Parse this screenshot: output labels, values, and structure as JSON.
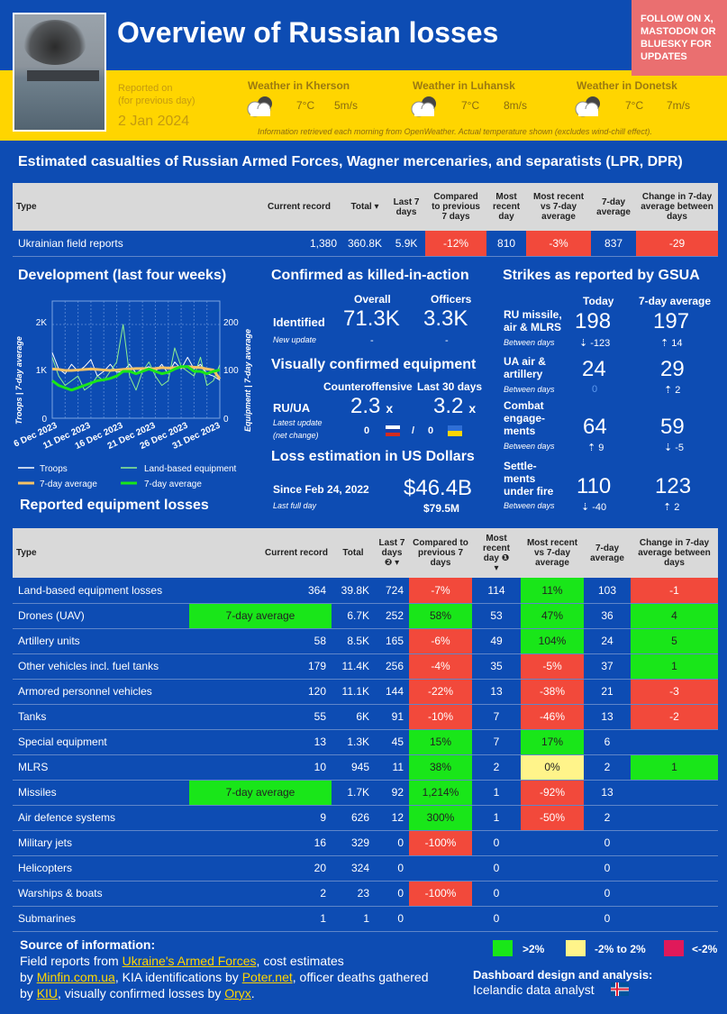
{
  "header": {
    "title": "Overview of Russian losses",
    "follow": "FOLLOW ON X, MASTODON OR BLUESKY FOR UPDATES",
    "reported_label1": "Reported on",
    "reported_label2": "(for previous day)",
    "reported_date": "2 Jan 2024",
    "weather": [
      {
        "title": "Weather in Kherson",
        "temp": "7°C",
        "wind": "5m/s"
      },
      {
        "title": "Weather in Luhansk",
        "temp": "7°C",
        "wind": "8m/s"
      },
      {
        "title": "Weather in Donetsk",
        "temp": "7°C",
        "wind": "7m/s"
      }
    ],
    "weather_note": "Information retrieved each morning from OpenWeather. Actual temperature shown (excludes wind-chill effect)."
  },
  "casualties": {
    "title": "Estimated casualties of Russian Armed Forces, Wagner mercenaries, and separatists (LPR, DPR)",
    "headers": [
      "Type",
      "Current record",
      "Total",
      "Last 7 days",
      "Compared to previous 7 days",
      "Most recent day",
      "Most recent vs 7-day average",
      "7-day average",
      "Change in 7-day average between days"
    ],
    "sort_marker": "▾",
    "row": {
      "type": "Ukrainian field reports",
      "record": "1,380",
      "total": "360.8K",
      "last7": "5.9K",
      "cmp": "-12%",
      "recent": "810",
      "vs": "-3%",
      "avg": "837",
      "chg": "-29"
    }
  },
  "development": {
    "title": "Development (last four weeks)",
    "y_left": "Troops | 7-day average",
    "y_right": "Equipment | 7-day average",
    "y_left_ticks": [
      "2K",
      "1K",
      "0"
    ],
    "y_right_ticks": [
      "200",
      "100",
      "0"
    ],
    "x_ticks": [
      "6 Dec 2023",
      "11 Dec 2023",
      "16 Dec 2023",
      "21 Dec 2023",
      "26 Dec 2023",
      "31 Dec 2023"
    ],
    "legend": [
      "Troops",
      "Land-based equipment",
      "7-day average",
      "7-day average"
    ]
  },
  "chart_data": {
    "type": "line",
    "x": [
      "2023-12-06",
      "2023-12-07",
      "2023-12-08",
      "2023-12-09",
      "2023-12-10",
      "2023-12-11",
      "2023-12-12",
      "2023-12-13",
      "2023-12-14",
      "2023-12-15",
      "2023-12-16",
      "2023-12-17",
      "2023-12-18",
      "2023-12-19",
      "2023-12-20",
      "2023-12-21",
      "2023-12-22",
      "2023-12-23",
      "2023-12-24",
      "2023-12-25",
      "2023-12-26",
      "2023-12-27",
      "2023-12-28",
      "2023-12-29",
      "2023-12-30",
      "2023-12-31",
      "2024-01-01"
    ],
    "series": [
      {
        "name": "Troops",
        "axis": "left",
        "values": [
          1400,
          1050,
          950,
          1150,
          1000,
          1100,
          1250,
          900,
          1000,
          1150,
          980,
          1000,
          1150,
          960,
          1050,
          1100,
          1000,
          1150,
          950,
          1200,
          1050,
          1300,
          1050,
          1150,
          950,
          900,
          810
        ]
      },
      {
        "name": "Land-based equipment",
        "axis": "right",
        "values": [
          130,
          90,
          70,
          80,
          90,
          60,
          70,
          90,
          80,
          100,
          120,
          200,
          90,
          60,
          100,
          120,
          90,
          70,
          80,
          150,
          110,
          100,
          90,
          130,
          70,
          80,
          114
        ]
      },
      {
        "name": "7-day average",
        "axis": "left",
        "values": [
          1050,
          1040,
          1020,
          1020,
          1030,
          1040,
          1050,
          1040,
          1030,
          1020,
          1030,
          1040,
          1050,
          1060,
          1060,
          1050,
          1060,
          1080,
          1070,
          1080,
          1090,
          1100,
          1090,
          1080,
          1050,
          1030,
          837
        ]
      },
      {
        "name": "7-day average",
        "axis": "right",
        "values": [
          80,
          70,
          65,
          60,
          65,
          70,
          75,
          80,
          82,
          85,
          90,
          100,
          100,
          95,
          100,
          105,
          100,
          95,
          98,
          105,
          110,
          110,
          100,
          100,
          95,
          100,
          103
        ]
      }
    ],
    "ylim_left": [
      0,
      2500
    ],
    "ylim_right": [
      0,
      250
    ],
    "colors": [
      "#ffffff",
      "#8ff08f",
      "#f5c266",
      "#19e619"
    ]
  },
  "kia": {
    "title": "Confirmed as killed-in-action",
    "col1": "Overall",
    "col2": "Officers",
    "label": "Identified",
    "sub": "New update",
    "overall": "71.3K",
    "officers": "3.3K",
    "dash1": "-",
    "dash2": "-"
  },
  "equipment_vis": {
    "title": "Visually confirmed equipment",
    "col1": "Counteroffensive",
    "col2": "Last 30 days",
    "label": "RU/UA",
    "sub1": "Latest update",
    "sub2": "(net change)",
    "v1": "2.3",
    "v2": "3.2",
    "x": "x",
    "ru": "0",
    "slash": "/",
    "ua": "0"
  },
  "loss_usd": {
    "title": "Loss estimation in US Dollars",
    "label": "Since Feb 24, 2022",
    "sub": "Last full day",
    "value": "$46.4B",
    "delta": "$79.5M"
  },
  "strikes": {
    "title": "Strikes as reported by GSUA",
    "col1": "Today",
    "col2": "7-day average",
    "between": "Between days",
    "rows": [
      {
        "label": "RU missile, air & MLRS",
        "today": "198",
        "td": "⇣ -123",
        "avg": "197",
        "ad": "⇡ 14"
      },
      {
        "label": "UA air & artillery",
        "today": "24",
        "td": "0",
        "avg": "29",
        "ad": "⇡ 2"
      },
      {
        "label": "Combat engage-ments",
        "today": "64",
        "td": "⇡ 9",
        "avg": "59",
        "ad": "⇣ -5"
      },
      {
        "label": "Settle-ments under fire",
        "today": "110",
        "td": "⇣ -40",
        "avg": "123",
        "ad": "⇡ 2"
      }
    ]
  },
  "equipment": {
    "title": "Reported equipment losses",
    "headers": [
      "Type",
      "Current record",
      "Total",
      "Last 7 days",
      "Compared to previous 7 days",
      "Most recent day",
      "Most recent vs 7-day average",
      "7-day average",
      "Change in 7-day average between days"
    ],
    "note2": "❷",
    "note1": "❶",
    "sort_marker": "▾",
    "rows": [
      {
        "type": "Land-based equipment losses",
        "record": "364",
        "rc": "",
        "total": "39.8K",
        "last7": "724",
        "cmp": "-7%",
        "cc": "red",
        "recent": "114",
        "vs": "11%",
        "vc": "grn",
        "avg": "103",
        "chg": "-1",
        "gc": "red"
      },
      {
        "type": "Drones (UAV)",
        "record": "7-day average",
        "rc": "grn",
        "total": "6.7K",
        "last7": "252",
        "cmp": "58%",
        "cc": "grn",
        "recent": "53",
        "vs": "47%",
        "vc": "grn",
        "avg": "36",
        "chg": "4",
        "gc": "grn"
      },
      {
        "type": "Artillery units",
        "record": "58",
        "rc": "",
        "total": "8.5K",
        "last7": "165",
        "cmp": "-6%",
        "cc": "red",
        "recent": "49",
        "vs": "104%",
        "vc": "grn",
        "avg": "24",
        "chg": "5",
        "gc": "grn"
      },
      {
        "type": "Other vehicles incl. fuel tanks",
        "record": "179",
        "rc": "",
        "total": "11.4K",
        "last7": "256",
        "cmp": "-4%",
        "cc": "red",
        "recent": "35",
        "vs": "-5%",
        "vc": "red",
        "avg": "37",
        "chg": "1",
        "gc": "grn"
      },
      {
        "type": "Armored personnel vehicles",
        "record": "120",
        "rc": "",
        "total": "11.1K",
        "last7": "144",
        "cmp": "-22%",
        "cc": "red",
        "recent": "13",
        "vs": "-38%",
        "vc": "red",
        "avg": "21",
        "chg": "-3",
        "gc": "red"
      },
      {
        "type": "Tanks",
        "record": "55",
        "rc": "",
        "total": "6K",
        "last7": "91",
        "cmp": "-10%",
        "cc": "red",
        "recent": "7",
        "vs": "-46%",
        "vc": "red",
        "avg": "13",
        "chg": "-2",
        "gc": "red"
      },
      {
        "type": "Special equipment",
        "record": "13",
        "rc": "",
        "total": "1.3K",
        "last7": "45",
        "cmp": "15%",
        "cc": "grn",
        "recent": "7",
        "vs": "17%",
        "vc": "grn",
        "avg": "6",
        "chg": "",
        "gc": ""
      },
      {
        "type": "MLRS",
        "record": "10",
        "rc": "",
        "total": "945",
        "last7": "11",
        "cmp": "38%",
        "cc": "grn",
        "recent": "2",
        "vs": "0%",
        "vc": "yel",
        "avg": "2",
        "chg": "1",
        "gc": "grn"
      },
      {
        "type": "Missiles",
        "record": "7-day average",
        "rc": "grn",
        "total": "1.7K",
        "last7": "92",
        "cmp": "1,214%",
        "cc": "grn",
        "recent": "1",
        "vs": "-92%",
        "vc": "red",
        "avg": "13",
        "chg": "",
        "gc": ""
      },
      {
        "type": "Air defence systems",
        "record": "9",
        "rc": "",
        "total": "626",
        "last7": "12",
        "cmp": "300%",
        "cc": "grn",
        "recent": "1",
        "vs": "-50%",
        "vc": "red",
        "avg": "2",
        "chg": "",
        "gc": ""
      },
      {
        "type": "Military jets",
        "record": "16",
        "rc": "",
        "total": "329",
        "last7": "0",
        "cmp": "-100%",
        "cc": "red",
        "recent": "0",
        "vs": "",
        "vc": "",
        "avg": "0",
        "chg": "",
        "gc": ""
      },
      {
        "type": "Helicopters",
        "record": "20",
        "rc": "",
        "total": "324",
        "last7": "0",
        "cmp": "",
        "cc": "",
        "recent": "0",
        "vs": "",
        "vc": "",
        "avg": "0",
        "chg": "",
        "gc": ""
      },
      {
        "type": "Warships & boats",
        "record": "2",
        "rc": "",
        "total": "23",
        "last7": "0",
        "cmp": "-100%",
        "cc": "red",
        "recent": "0",
        "vs": "",
        "vc": "",
        "avg": "0",
        "chg": "",
        "gc": ""
      },
      {
        "type": "Submarines",
        "record": "1",
        "rc": "",
        "total": "1",
        "last7": "0",
        "cmp": "",
        "cc": "",
        "recent": "0",
        "vs": "",
        "vc": "",
        "avg": "0",
        "chg": "",
        "gc": ""
      }
    ]
  },
  "footer": {
    "src_title": "Source of information:",
    "l1a": "Field reports from ",
    "l1b": "Ukraine's Armed Forces",
    "l1c": ", cost estimates",
    "l2a": "by ",
    "l2b": "Minfin.com.ua",
    "l2c": ", KIA identifications by ",
    "l2d": "Poter.net",
    "l2e": ", officer deaths gathered",
    "l3a": "by ",
    "l3b": "KIU",
    "l3c": ", visually confirmed losses by ",
    "l3d": "Oryx",
    "l3e": ".",
    "legend": [
      {
        "label": ">2%",
        "color": "#19e619"
      },
      {
        "label": "-2% to 2%",
        "color": "#fff48a"
      },
      {
        "label": "<-2%",
        "color": "#e0195a"
      }
    ],
    "design_title": "Dashboard design and analysis:",
    "design_name": "Icelandic data analyst"
  }
}
